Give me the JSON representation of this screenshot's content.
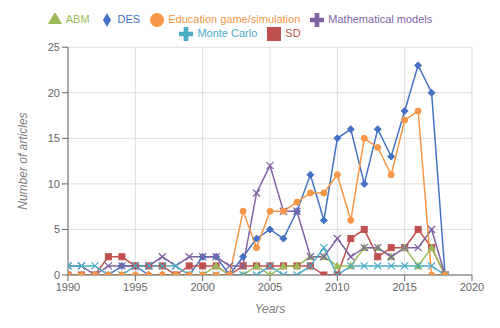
{
  "chart_data": {
    "type": "line",
    "xlabel": "Years",
    "ylabel": "Number of articles",
    "x": [
      1990,
      1991,
      1992,
      1993,
      1994,
      1995,
      1996,
      1997,
      1998,
      1999,
      2000,
      2001,
      2002,
      2003,
      2004,
      2005,
      2006,
      2007,
      2008,
      2009,
      2010,
      2011,
      2012,
      2013,
      2014,
      2015,
      2016,
      2017,
      2018
    ],
    "series": [
      {
        "name": "DES",
        "color": "#4472C4",
        "marker": "diamond",
        "values": [
          0,
          0,
          0,
          0,
          1,
          1,
          0,
          0,
          0,
          0,
          2,
          2,
          0,
          2,
          4,
          5,
          4,
          7,
          11,
          6,
          15,
          16,
          10,
          16,
          13,
          18,
          23,
          20,
          0
        ]
      },
      {
        "name": "SD",
        "color": "#C0504D",
        "marker": "square",
        "values": [
          0,
          0,
          0,
          2,
          2,
          1,
          1,
          1,
          0,
          1,
          1,
          1,
          0,
          1,
          1,
          1,
          1,
          1,
          1,
          0,
          0,
          4,
          5,
          2,
          3,
          3,
          5,
          3,
          0
        ]
      },
      {
        "name": "ABM",
        "color": "#9BBB59",
        "marker": "triangle",
        "values": [
          0,
          0,
          0,
          0,
          0,
          0,
          0,
          0,
          0,
          0,
          0,
          1,
          0,
          0,
          1,
          0,
          1,
          1,
          2,
          2,
          1,
          1,
          3,
          3,
          2,
          3,
          1,
          3,
          0
        ]
      },
      {
        "name": "Mathematical models",
        "color": "#8064A2",
        "marker": "x",
        "values": [
          1,
          1,
          0,
          1,
          1,
          1,
          1,
          2,
          1,
          2,
          2,
          2,
          1,
          1,
          9,
          12,
          7,
          7,
          2,
          2,
          4,
          2,
          3,
          3,
          2,
          3,
          3,
          5,
          0
        ]
      },
      {
        "name": "Monte Carlo",
        "color": "#4BACC6",
        "marker": "x",
        "values": [
          1,
          1,
          1,
          0,
          0,
          1,
          1,
          1,
          1,
          0,
          0,
          0,
          0,
          0,
          0,
          1,
          0,
          0,
          1,
          3,
          0,
          1,
          1,
          1,
          1,
          1,
          1,
          1,
          0
        ]
      },
      {
        "name": "Education game/simulation",
        "color": "#F79646",
        "marker": "circle",
        "values": [
          0,
          0,
          0,
          0,
          0,
          0,
          0,
          0,
          0,
          0,
          0,
          0,
          0,
          7,
          3,
          7,
          7,
          8,
          9,
          9,
          11,
          6,
          15,
          14,
          11,
          17,
          18,
          0,
          0
        ]
      }
    ],
    "xlim": [
      1990,
      2020
    ],
    "ylim": [
      0,
      25
    ],
    "xticks": [
      1990,
      1995,
      2000,
      2005,
      2010,
      2015,
      2020
    ],
    "yticks": [
      0,
      5,
      10,
      15,
      20,
      25
    ],
    "grid": true,
    "legend": "top"
  }
}
